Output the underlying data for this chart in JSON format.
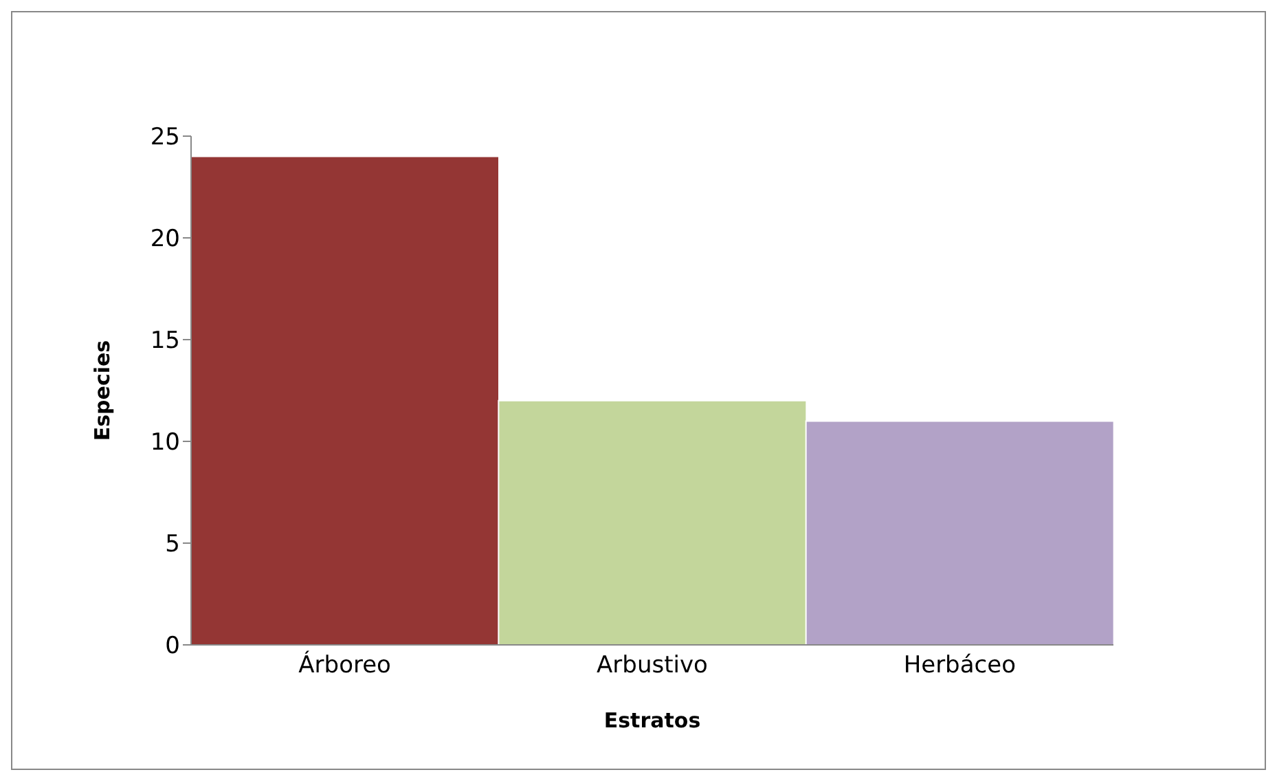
{
  "chart_data": {
    "type": "bar",
    "xlabel": "Estratos",
    "ylabel": "Especies",
    "categories": [
      "Árboreo",
      "Arbustivo",
      "Herbáceo"
    ],
    "values": [
      24,
      12,
      11
    ],
    "colors": [
      "#943634",
      "#c3d69b",
      "#b2a2c7"
    ],
    "ylim": [
      0,
      25
    ],
    "yticks": [
      0,
      5,
      10,
      15,
      20,
      25
    ],
    "grid": false,
    "legend": false
  }
}
